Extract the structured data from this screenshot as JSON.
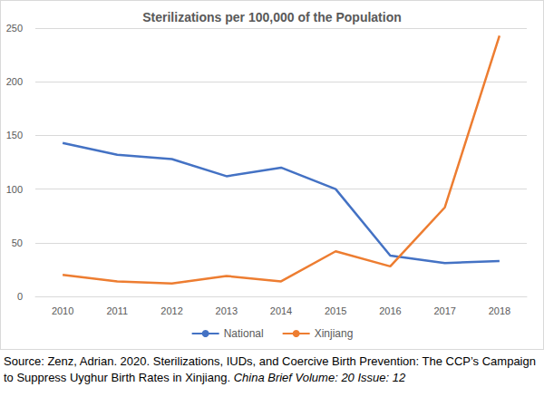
{
  "chart_data": {
    "type": "line",
    "title": "Sterilizations per 100,000 of the Population",
    "categories": [
      "2010",
      "2011",
      "2012",
      "2013",
      "2014",
      "2015",
      "2016",
      "2017",
      "2018"
    ],
    "series": [
      {
        "name": "National",
        "color": "#4472c4",
        "values": [
          143,
          132,
          128,
          112,
          120,
          100,
          38,
          31,
          33
        ]
      },
      {
        "name": "Xinjiang",
        "color": "#ed7d31",
        "values": [
          20,
          14,
          12,
          19,
          14,
          42,
          28,
          83,
          243
        ]
      }
    ],
    "ylim": [
      0,
      250
    ],
    "yticks": [
      0,
      50,
      100,
      150,
      200,
      250
    ],
    "grid": true,
    "legend": "bottom",
    "source": [
      "Source: Zenz, Adrian. 2020. Sterilizations, IUDs, and Coercive Birth Prevention: The CCP’s Campaign to Suppress Uyghur Birth Rates in Xinjiang.",
      "China Brief Volume: 20 Issue: 12"
    ]
  }
}
